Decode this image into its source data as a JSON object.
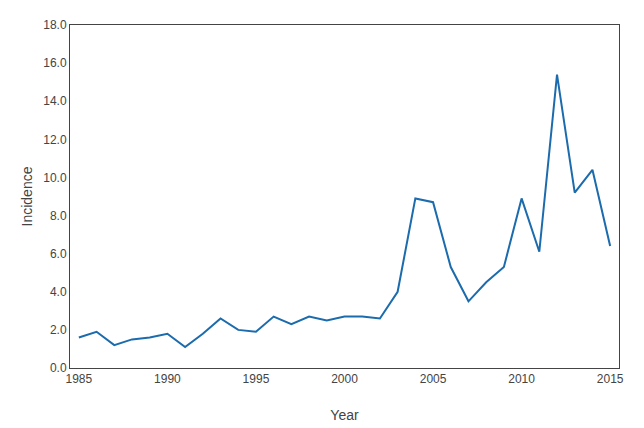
{
  "chart_data": {
    "type": "line",
    "x": [
      1985,
      1986,
      1987,
      1988,
      1989,
      1990,
      1991,
      1992,
      1993,
      1994,
      1995,
      1996,
      1997,
      1998,
      1999,
      2000,
      2001,
      2002,
      2003,
      2004,
      2005,
      2006,
      2007,
      2008,
      2009,
      2010,
      2011,
      2012,
      2013,
      2014,
      2015
    ],
    "values": [
      1.6,
      1.9,
      1.2,
      1.5,
      1.6,
      1.8,
      1.1,
      1.8,
      2.6,
      2.0,
      1.9,
      2.7,
      2.3,
      2.7,
      2.5,
      2.7,
      2.7,
      2.6,
      4.0,
      8.9,
      8.7,
      5.3,
      3.5,
      4.5,
      5.3,
      8.9,
      6.1,
      15.4,
      9.2,
      10.4,
      6.4
    ],
    "color": "#1B6BAD",
    "xlabel": "Year",
    "ylabel": "Incidence",
    "xlim": [
      1984.5,
      2015.5
    ],
    "ylim": [
      0.0,
      18.0
    ],
    "xticks": [
      1985,
      1990,
      1995,
      2000,
      2005,
      2010,
      2015
    ],
    "yticks": [
      {
        "value": 0,
        "label": "0.0"
      },
      {
        "value": 2,
        "label": "2.0"
      },
      {
        "value": 4,
        "label": "4.0"
      },
      {
        "value": 6,
        "label": "6.0"
      },
      {
        "value": 8,
        "label": "8.0"
      },
      {
        "value": 10,
        "label": "10.0"
      },
      {
        "value": 12,
        "label": "12.0"
      },
      {
        "value": 14,
        "label": "14.0"
      },
      {
        "value": 16,
        "label": "16.0"
      },
      {
        "value": 18,
        "label": "18.0"
      }
    ],
    "grid": false
  }
}
